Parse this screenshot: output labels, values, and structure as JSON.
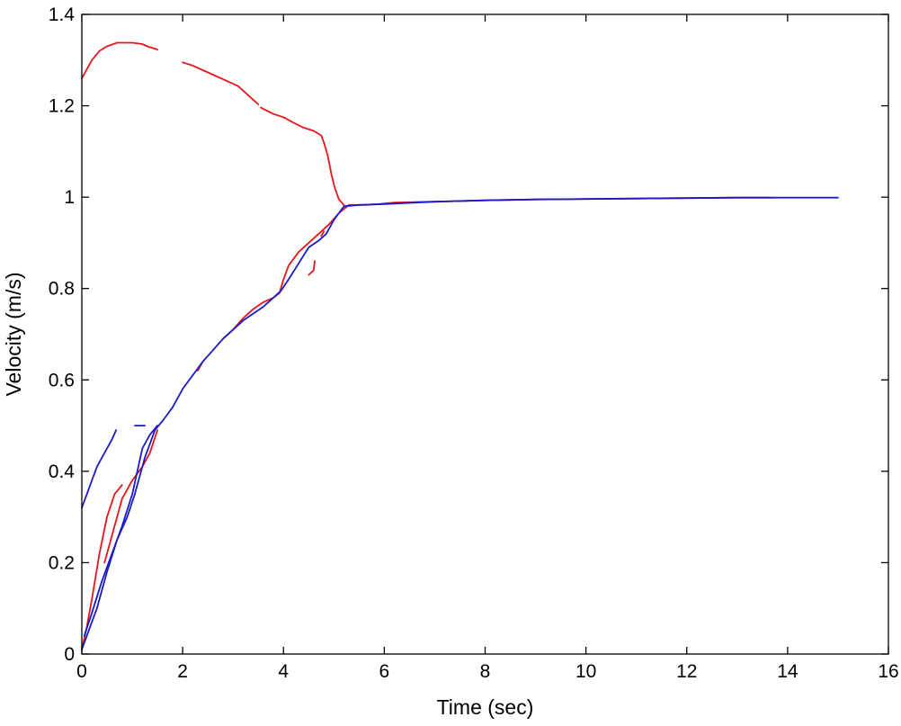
{
  "chart_data": {
    "type": "line",
    "title": "",
    "xlabel": "Time (sec)",
    "ylabel": "Velocity (m/s)",
    "xlim": [
      0,
      16
    ],
    "ylim": [
      0,
      1.4
    ],
    "xticks": [
      0,
      2,
      4,
      6,
      8,
      10,
      12,
      14,
      16
    ],
    "yticks": [
      0,
      0.2,
      0.4,
      0.6,
      0.8,
      1,
      1.2,
      1.4
    ],
    "xtick_labels": [
      "0",
      "2",
      "4",
      "6",
      "8",
      "10",
      "12",
      "14",
      "16"
    ],
    "ytick_labels": [
      "0",
      "0.2",
      "0.4",
      "0.6",
      "0.8",
      "1",
      "1.2",
      "1.4"
    ],
    "grid": false,
    "legend": false,
    "series": [
      {
        "color": "#e8161a",
        "segments": [
          [
            [
              0.0,
              1.26
            ],
            [
              0.1,
              1.28
            ],
            [
              0.2,
              1.3
            ],
            [
              0.35,
              1.32
            ],
            [
              0.5,
              1.33
            ],
            [
              0.7,
              1.338
            ],
            [
              1.0,
              1.338
            ],
            [
              1.2,
              1.335
            ],
            [
              1.3,
              1.33
            ],
            [
              1.5,
              1.323
            ]
          ],
          [
            [
              2.0,
              1.295
            ],
            [
              2.2,
              1.288
            ],
            [
              2.5,
              1.273
            ],
            [
              2.8,
              1.258
            ],
            [
              3.1,
              1.243
            ],
            [
              3.5,
              1.203
            ]
          ],
          [
            [
              3.55,
              1.196
            ],
            [
              3.8,
              1.182
            ],
            [
              4.0,
              1.175
            ],
            [
              4.2,
              1.163
            ],
            [
              4.4,
              1.152
            ],
            [
              4.6,
              1.145
            ],
            [
              4.75,
              1.135
            ],
            [
              4.8,
              1.12
            ],
            [
              4.88,
              1.09
            ],
            [
              4.95,
              1.05
            ],
            [
              5.02,
              1.02
            ],
            [
              5.1,
              0.995
            ],
            [
              5.2,
              0.983
            ]
          ],
          [
            [
              0.0,
              0.01
            ],
            [
              0.1,
              0.06
            ],
            [
              0.2,
              0.12
            ],
            [
              0.35,
              0.22
            ],
            [
              0.5,
              0.3
            ],
            [
              0.65,
              0.35
            ],
            [
              0.8,
              0.37
            ]
          ],
          [
            [
              0.45,
              0.2
            ],
            [
              0.6,
              0.26
            ],
            [
              0.8,
              0.34
            ],
            [
              1.0,
              0.38
            ],
            [
              1.2,
              0.41
            ],
            [
              1.35,
              0.44
            ],
            [
              1.5,
              0.49
            ]
          ],
          [
            [
              2.3,
              0.62
            ],
            [
              2.4,
              0.64
            ]
          ],
          [
            [
              2.8,
              0.69
            ],
            [
              3.0,
              0.71
            ],
            [
              3.2,
              0.735
            ],
            [
              3.4,
              0.755
            ],
            [
              3.6,
              0.77
            ],
            [
              3.8,
              0.78
            ],
            [
              3.92,
              0.79
            ],
            [
              4.0,
              0.82
            ],
            [
              4.1,
              0.85
            ],
            [
              4.3,
              0.88
            ],
            [
              4.5,
              0.9
            ],
            [
              4.7,
              0.92
            ],
            [
              4.9,
              0.94
            ],
            [
              5.1,
              0.965
            ],
            [
              5.3,
              0.983
            ],
            [
              5.6,
              0.983
            ],
            [
              5.9,
              0.985
            ],
            [
              6.2,
              0.988
            ],
            [
              7.0,
              0.99
            ],
            [
              8.0,
              0.993
            ],
            [
              9.0,
              0.995
            ],
            [
              10.0,
              0.996
            ],
            [
              11.0,
              0.997
            ],
            [
              12.0,
              0.998
            ],
            [
              13.0,
              0.999
            ],
            [
              13.7,
              0.999
            ]
          ],
          [
            [
              4.5,
              0.83
            ],
            [
              4.6,
              0.84
            ],
            [
              4.62,
              0.86
            ]
          ],
          [
            [
              4.75,
              0.915
            ],
            [
              4.8,
              0.925
            ]
          ]
        ]
      },
      {
        "color": "#1a1acc",
        "segments": [
          [
            [
              0.0,
              0.32
            ],
            [
              0.1,
              0.35
            ],
            [
              0.2,
              0.38
            ],
            [
              0.3,
              0.41
            ],
            [
              0.45,
              0.44
            ],
            [
              0.6,
              0.47
            ],
            [
              0.68,
              0.49
            ]
          ],
          [
            [
              1.05,
              0.5
            ],
            [
              1.25,
              0.5
            ]
          ],
          [
            [
              0.0,
              0.01
            ],
            [
              0.1,
              0.04
            ],
            [
              0.3,
              0.1
            ],
            [
              0.5,
              0.18
            ],
            [
              0.7,
              0.25
            ],
            [
              0.9,
              0.3
            ],
            [
              1.05,
              0.35
            ],
            [
              1.15,
              0.39
            ],
            [
              1.25,
              0.43
            ],
            [
              1.35,
              0.46
            ],
            [
              1.45,
              0.49
            ],
            [
              1.6,
              0.51
            ],
            [
              1.8,
              0.54
            ],
            [
              2.0,
              0.58
            ],
            [
              2.2,
              0.61
            ],
            [
              2.4,
              0.64
            ],
            [
              2.6,
              0.665
            ],
            [
              2.8,
              0.69
            ],
            [
              3.0,
              0.71
            ],
            [
              3.2,
              0.73
            ],
            [
              3.4,
              0.745
            ],
            [
              3.6,
              0.76
            ],
            [
              3.8,
              0.78
            ],
            [
              3.95,
              0.795
            ],
            [
              4.1,
              0.82
            ],
            [
              4.3,
              0.855
            ],
            [
              4.5,
              0.89
            ],
            [
              4.7,
              0.905
            ],
            [
              4.85,
              0.92
            ],
            [
              5.0,
              0.95
            ],
            [
              5.2,
              0.98
            ],
            [
              5.5,
              0.983
            ],
            [
              6.0,
              0.985
            ],
            [
              7.0,
              0.99
            ],
            [
              8.0,
              0.993
            ],
            [
              9.0,
              0.995
            ],
            [
              10.0,
              0.996
            ],
            [
              11.0,
              0.997
            ],
            [
              12.0,
              0.998
            ],
            [
              13.0,
              0.999
            ],
            [
              14.0,
              0.999
            ],
            [
              15.0,
              0.999
            ]
          ],
          [
            [
              0.05,
              0.04
            ],
            [
              0.2,
              0.09
            ],
            [
              0.4,
              0.16
            ],
            [
              0.6,
              0.22
            ],
            [
              0.8,
              0.28
            ],
            [
              1.0,
              0.35
            ],
            [
              1.1,
              0.4
            ],
            [
              1.2,
              0.45
            ],
            [
              1.35,
              0.48
            ],
            [
              1.5,
              0.5
            ]
          ]
        ]
      }
    ]
  }
}
